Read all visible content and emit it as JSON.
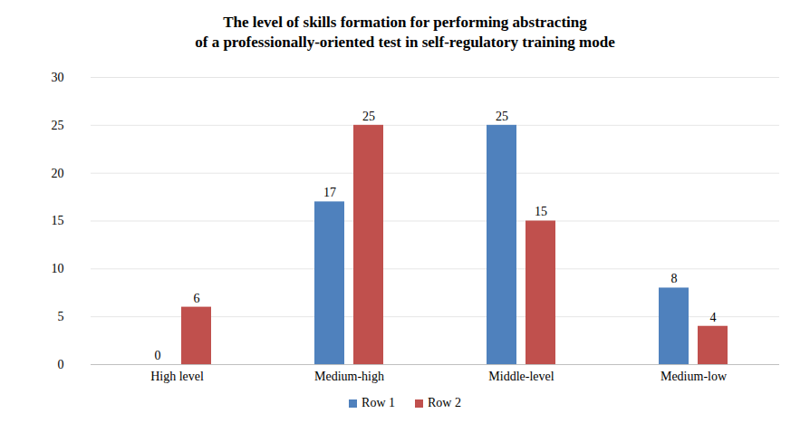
{
  "chart_data": {
    "type": "bar",
    "title": "The level of skills formation for performing abstracting\nof a professionally-oriented test in self-regulatory training mode",
    "categories": [
      "High level",
      "Medium-high",
      "Middle-level",
      "Medium-low"
    ],
    "series": [
      {
        "name": "Row 1",
        "color": "#4f81bd",
        "values": [
          0,
          17,
          25,
          8
        ]
      },
      {
        "name": "Row 2",
        "color": "#c0504d",
        "values": [
          6,
          25,
          15,
          4
        ]
      }
    ],
    "ylim": [
      0,
      30
    ],
    "yticks": [
      0,
      5,
      10,
      15,
      20,
      25,
      30
    ],
    "grid": true,
    "data_labels": true,
    "legend": "bottom"
  }
}
